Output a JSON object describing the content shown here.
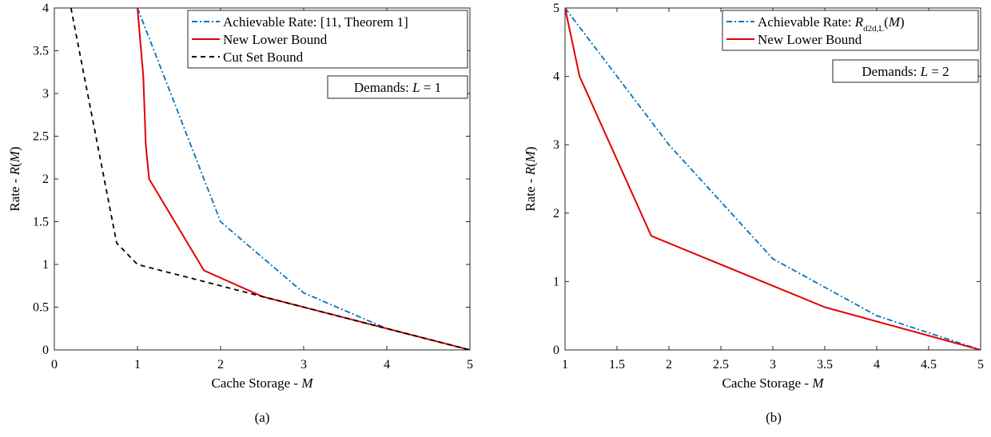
{
  "chart_data": [
    {
      "type": "line",
      "panel_label": "(a)",
      "xlabel_prefix": "Cache Storage - ",
      "xlabel_var": "M",
      "ylabel_prefix": "Rate - ",
      "ylabel_var": "R(M)",
      "xlim": [
        0,
        5
      ],
      "ylim": [
        0,
        4
      ],
      "xticks": [
        0,
        1,
        2,
        3,
        4,
        5
      ],
      "yticks": [
        0,
        0.5,
        1,
        1.5,
        2,
        2.5,
        3,
        3.5,
        4
      ],
      "grid": false,
      "legend_position": "top-right",
      "annotation_prefix": "Demands: ",
      "annotation_math": "L = 1",
      "series": [
        {
          "name": "Achievable Rate: [11, Theorem 1]",
          "name_math": "",
          "color": "#0072BD",
          "dash": "dashdot",
          "x": [
            1,
            2,
            3,
            4,
            5
          ],
          "y": [
            4,
            1.5,
            0.667,
            0.25,
            0
          ]
        },
        {
          "name": "New Lower Bound",
          "name_math": "",
          "color": "#E00000",
          "dash": "solid",
          "x": [
            1,
            1.07,
            1.1,
            1.14,
            1.8,
            2.5,
            5
          ],
          "y": [
            4,
            3.2,
            2.4,
            2.0,
            0.93,
            0.625,
            0
          ]
        },
        {
          "name": "Cut Set Bound",
          "name_math": "",
          "color": "#000000",
          "dash": "dashed",
          "x": [
            0.2,
            0.75,
            1,
            5
          ],
          "y": [
            4,
            1.25,
            1.0,
            0
          ]
        }
      ]
    },
    {
      "type": "line",
      "panel_label": "(b)",
      "xlabel_prefix": "Cache Storage - ",
      "xlabel_var": "M",
      "ylabel_prefix": "Rate - ",
      "ylabel_var": "R(M)",
      "xlim": [
        1,
        5
      ],
      "ylim": [
        0,
        5
      ],
      "xticks": [
        1,
        1.5,
        2,
        2.5,
        3,
        3.5,
        4,
        4.5,
        5
      ],
      "yticks": [
        0,
        1,
        2,
        3,
        4,
        5
      ],
      "grid": false,
      "legend_position": "top-right",
      "annotation_prefix": "Demands: ",
      "annotation_math": "L = 2",
      "series": [
        {
          "name": "Achievable Rate: ",
          "name_math": "R_d2d,L(M)",
          "color": "#0072BD",
          "dash": "dashdot",
          "x": [
            1,
            2,
            3,
            4,
            5
          ],
          "y": [
            5,
            3,
            1.333,
            0.5,
            0
          ]
        },
        {
          "name": "New Lower Bound",
          "name_math": "",
          "color": "#E00000",
          "dash": "solid",
          "x": [
            1,
            1.14,
            1.83,
            3.5,
            5
          ],
          "y": [
            5,
            4,
            1.667,
            0.625,
            0
          ]
        }
      ]
    }
  ]
}
